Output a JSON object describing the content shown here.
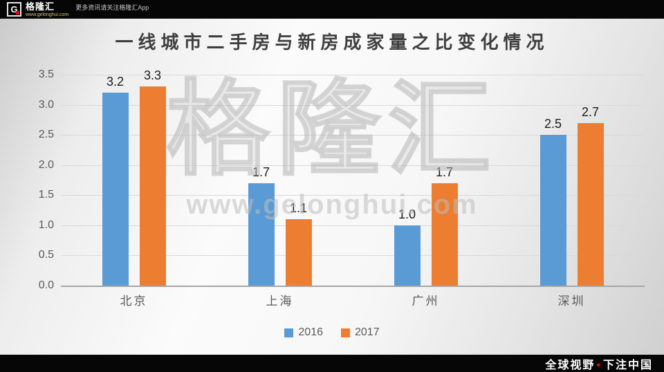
{
  "colors": {
    "bar_blue": "#5b9bd5",
    "bar_orange": "#ed7d31",
    "accent_red": "#e60012",
    "bar_background": "#060606"
  },
  "header": {
    "logo_letter": "G",
    "brand": "格隆汇",
    "brand_url": "www.gelonghui.com",
    "note": "更多资讯请关注格隆汇App"
  },
  "watermark": {
    "brand": "格隆汇",
    "url": "www.gelonghui.com"
  },
  "footer": {
    "slogan_left": "全球视野",
    "separator": "•",
    "slogan_right": "下注中国"
  },
  "chart_data": {
    "type": "bar",
    "title": "一线城市二手房与新房成家量之比变化情况",
    "categories": [
      "北京",
      "上海",
      "广州",
      "深圳"
    ],
    "series": [
      {
        "name": "2016",
        "color": "#5b9bd5",
        "values": [
          3.2,
          1.7,
          1.0,
          2.5
        ]
      },
      {
        "name": "2017",
        "color": "#ed7d31",
        "values": [
          3.3,
          1.1,
          1.7,
          2.7
        ]
      }
    ],
    "ylim": [
      0,
      3.5
    ],
    "ytick": 0.5,
    "value_decimals": 1,
    "grid": true,
    "legend_position": "bottom"
  }
}
